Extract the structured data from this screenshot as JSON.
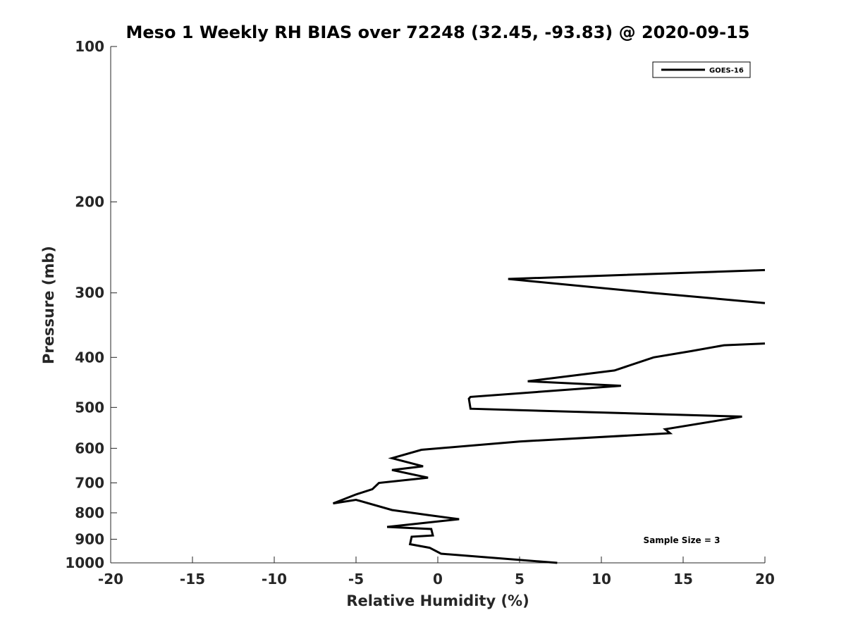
{
  "chart_data": {
    "type": "line",
    "title": "Meso 1 Weekly RH BIAS over 72248 (32.45, -93.83) @ 2020-09-15",
    "xlabel": "Relative Humidity (%)",
    "ylabel": "Pressure (mb)",
    "xlim": [
      -20,
      20
    ],
    "ylim": [
      100,
      1000
    ],
    "yscale": "log",
    "y_reversed": true,
    "x_ticks": [
      "-20",
      "-15",
      "-10",
      "-5",
      "0",
      "5",
      "10",
      "15",
      "20"
    ],
    "y_ticks": [
      "100",
      "200",
      "300",
      "400",
      "500",
      "600",
      "700",
      "800",
      "900",
      "1000"
    ],
    "grid": false,
    "legend_position": "top-right",
    "annotation": "Sample Size = 3",
    "series": [
      {
        "name": "GOES-16",
        "color": "#000000",
        "x": [
          7.3,
          0.2,
          -0.5,
          -1.7,
          -1.6,
          -0.3,
          -0.4,
          -3.1,
          1.3,
          -0.6,
          -2.8,
          -5.0,
          -6.4,
          -5.0,
          -4.0,
          -3.6,
          -0.6,
          -2.8,
          -0.9,
          -2.8,
          -1.0,
          5.0,
          14.2,
          13.9,
          18.6,
          2.0,
          1.9,
          2.0,
          11.2,
          5.5,
          10.8,
          13.2,
          15.5,
          17.5,
          20.0
        ],
        "y": [
          1000,
          960,
          935,
          920,
          890,
          885,
          860,
          852,
          823,
          808,
          790,
          755,
          767,
          737,
          720,
          700,
          684,
          661,
          650,
          627,
          604,
          582,
          561,
          551,
          521,
          503,
          481,
          477,
          454,
          445,
          424,
          400,
          389,
          379,
          376
        ]
      },
      {
        "name": "GOES-16",
        "color": "#000000",
        "x": [
          20.0,
          13.1,
          4.3,
          20.0
        ],
        "y": [
          314,
          300,
          282,
          271
        ]
      }
    ]
  }
}
